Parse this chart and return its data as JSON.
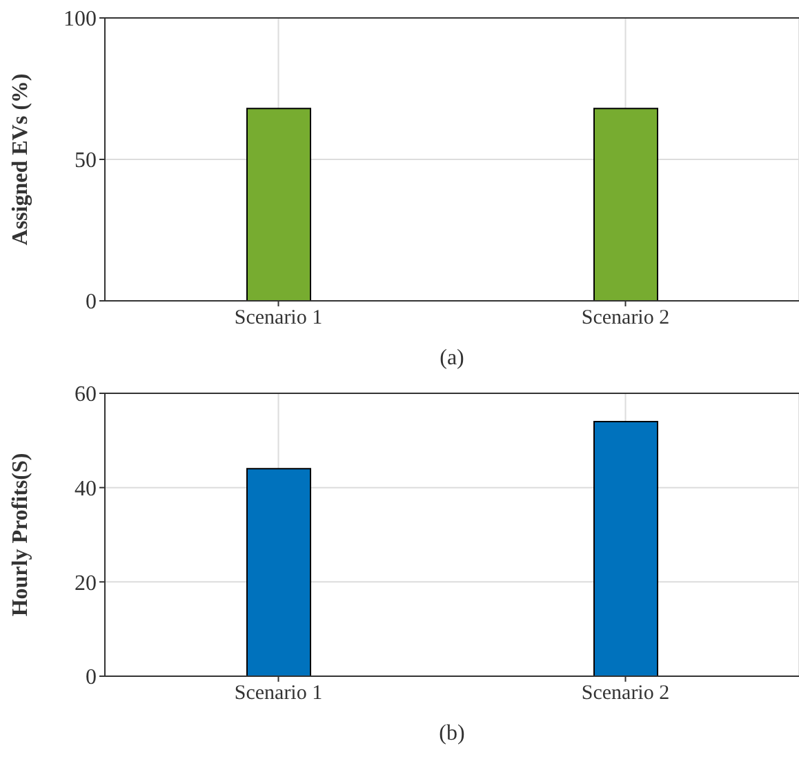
{
  "chart_data": [
    {
      "type": "bar",
      "categories": [
        "Scenario 1",
        "Scenario 2"
      ],
      "values": [
        68,
        68
      ],
      "color": "#77ac30",
      "ylim": [
        0,
        100
      ],
      "yticks": [
        0,
        50,
        100
      ],
      "ylabel": "Assigned EVs (%)",
      "xlabel": "(a)",
      "grid": true
    },
    {
      "type": "bar",
      "categories": [
        "Scenario 1",
        "Scenario 2"
      ],
      "values": [
        44,
        54
      ],
      "color": "#0072bd",
      "ylim": [
        0,
        60
      ],
      "yticks": [
        0,
        20,
        40,
        60
      ],
      "ylabel": "Hourly Profits(S)",
      "xlabel": "(b)",
      "grid": true
    }
  ]
}
